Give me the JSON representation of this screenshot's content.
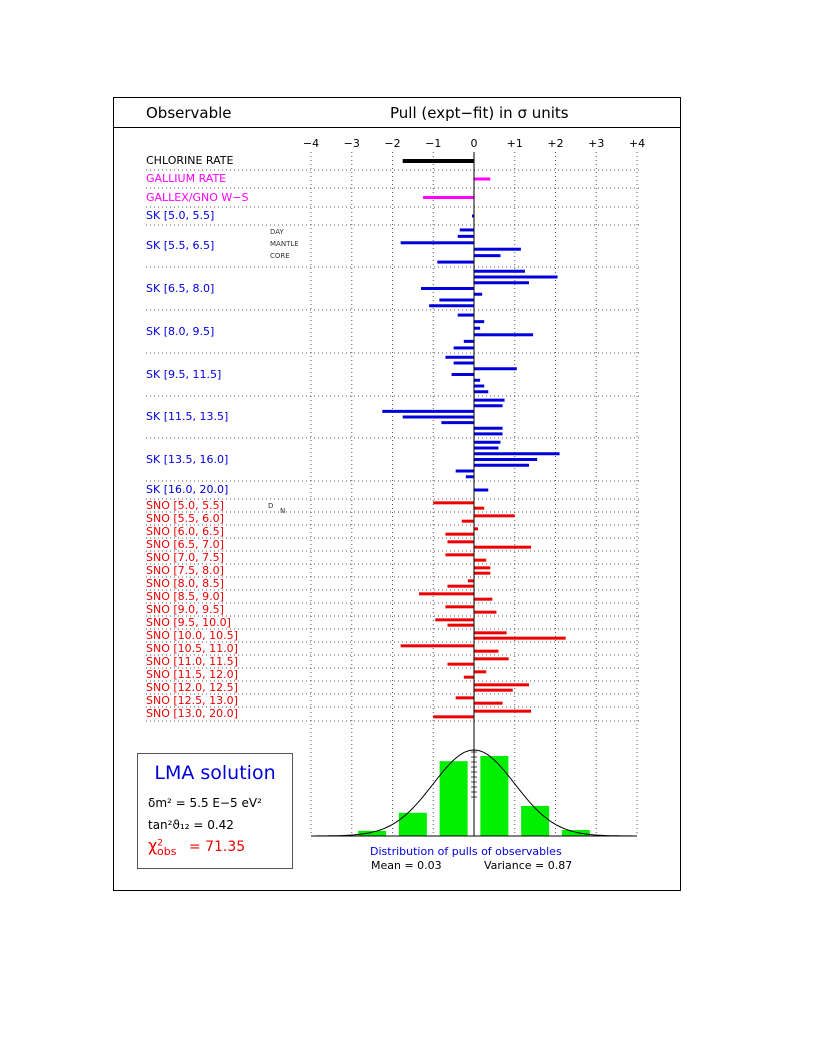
{
  "header": {
    "observable_label": "Observable",
    "pull_label": "Pull (expt−fit)  in σ units"
  },
  "colors": {
    "chlorine": "#000000",
    "gallium": "#ff00ff",
    "sk": "#0000dd",
    "sno": "#ee0000",
    "hist": "#00ee00"
  },
  "chart_data": [
    {
      "type": "bar",
      "orientation": "horizontal",
      "xlim": [
        -4,
        4
      ],
      "xticks": [
        "−4",
        "−3",
        "−2",
        "−1",
        "0",
        "+1",
        "+2",
        "+3",
        "+4"
      ],
      "grid": true,
      "rows": [
        {
          "label": "CHLORINE RATE",
          "group": "chlorine",
          "values": [
            -1.75
          ]
        },
        {
          "label": "GALLIUM RATE",
          "group": "gallium",
          "values": [
            0.4
          ]
        },
        {
          "label": "GALLEX/GNO  W−S",
          "group": "gallium",
          "values": [
            -1.25
          ]
        },
        {
          "label": "SK [5.0, 5.5]",
          "group": "sk",
          "values": [
            -0.05
          ]
        },
        {
          "label": "SK [5.5, 6.5]",
          "group": "sk",
          "sublabels": [
            "DAY",
            "MANTLE",
            "CORE"
          ],
          "values": [
            -0.35,
            -0.4,
            -1.8,
            1.15,
            0.65,
            -0.9
          ]
        },
        {
          "label": "SK [6.5, 8.0]",
          "group": "sk",
          "values": [
            1.25,
            2.05,
            1.35,
            -1.3,
            0.2,
            -0.85,
            -1.1
          ]
        },
        {
          "label": "SK [8.0, 9.5]",
          "group": "sk",
          "values": [
            -0.4,
            0.25,
            0.15,
            1.45,
            -0.25,
            -0.5
          ]
        },
        {
          "label": "SK [9.5, 11.5]",
          "group": "sk",
          "values": [
            -0.7,
            -0.5,
            1.05,
            -0.55,
            0.15,
            0.25,
            0.35
          ]
        },
        {
          "label": "SK [11.5, 13.5]",
          "group": "sk",
          "values": [
            0.75,
            0.7,
            -2.25,
            -1.75,
            -0.8,
            0.7,
            0.7
          ]
        },
        {
          "label": "SK [13.5, 16.0]",
          "group": "sk",
          "values": [
            0.65,
            0.6,
            2.1,
            1.55,
            1.35,
            -0.45,
            -0.2
          ]
        },
        {
          "label": "SK  [16.0, 20.0]",
          "group": "sk",
          "values": [
            0.35
          ]
        },
        {
          "label": "SNO [5.0, 5.5]",
          "group": "sno",
          "values": [
            -1.0,
            0.25
          ]
        },
        {
          "label": "SNO [5.5, 6.0]",
          "group": "sno",
          "values": [
            1.0,
            -0.3
          ]
        },
        {
          "label": "SNO [6.0, 6.5]",
          "group": "sno",
          "values": [
            0.1,
            -0.7
          ]
        },
        {
          "label": "SNO [6.5, 7.0]",
          "group": "sno",
          "values": [
            -0.65,
            1.4
          ]
        },
        {
          "label": "SNO [7.0, 7.5]",
          "group": "sno",
          "values": [
            -0.7,
            0.3
          ]
        },
        {
          "label": "SNO [7.5, 8.0]",
          "group": "sno",
          "values": [
            0.4,
            0.4
          ]
        },
        {
          "label": "SNO [8.0, 8.5]",
          "group": "sno",
          "values": [
            -0.15,
            -0.65
          ]
        },
        {
          "label": "SNO [8.5, 9.0]",
          "group": "sno",
          "values": [
            -1.35,
            0.45
          ]
        },
        {
          "label": "SNO [9.0, 9.5]",
          "group": "sno",
          "values": [
            -0.7,
            0.55
          ]
        },
        {
          "label": "SNO [9.5, 10.0]",
          "group": "sno",
          "values": [
            -0.95,
            -0.65
          ]
        },
        {
          "label": "SNO [10.0, 10.5]",
          "group": "sno",
          "values": [
            0.8,
            2.25
          ]
        },
        {
          "label": "SNO [10.5, 11.0]",
          "group": "sno",
          "values": [
            -1.8,
            0.6
          ]
        },
        {
          "label": "SNO [11.0, 11.5]",
          "group": "sno",
          "values": [
            0.85,
            -0.65
          ]
        },
        {
          "label": "SNO [11.5, 12.0]",
          "group": "sno",
          "values": [
            0.3,
            -0.25
          ]
        },
        {
          "label": "SNO [12.0, 12.5]",
          "group": "sno",
          "values": [
            1.35,
            0.95
          ]
        },
        {
          "label": "SNO [12.5, 13.0]",
          "group": "sno",
          "values": [
            -0.45,
            0.7
          ]
        },
        {
          "label": "SNO [13.0, 20.0]",
          "group": "sno",
          "values": [
            1.4,
            -1.0
          ]
        }
      ],
      "sno_sublabels": [
        "D",
        "N"
      ]
    },
    {
      "type": "bar",
      "title": "Distribution of pulls of observables",
      "bin_centers": [
        -2.5,
        -1.5,
        -0.5,
        0.5,
        1.5,
        2.5
      ],
      "values": [
        0.06,
        0.27,
        0.87,
        0.93,
        0.35,
        0.07
      ],
      "curve": "gaussian",
      "stats": {
        "mean": "Mean = 0.03",
        "variance": "Variance = 0.87"
      }
    }
  ],
  "lma_box": {
    "title": "LMA solution",
    "dm2": "δm² = 5.5 E−5 eV²",
    "tan2": "tan²ϑ₁₂ = 0.42",
    "chi_symbol": "χ",
    "chi_sup": "2",
    "chi_sub": "obs",
    "chi_value": "=  71.35"
  }
}
